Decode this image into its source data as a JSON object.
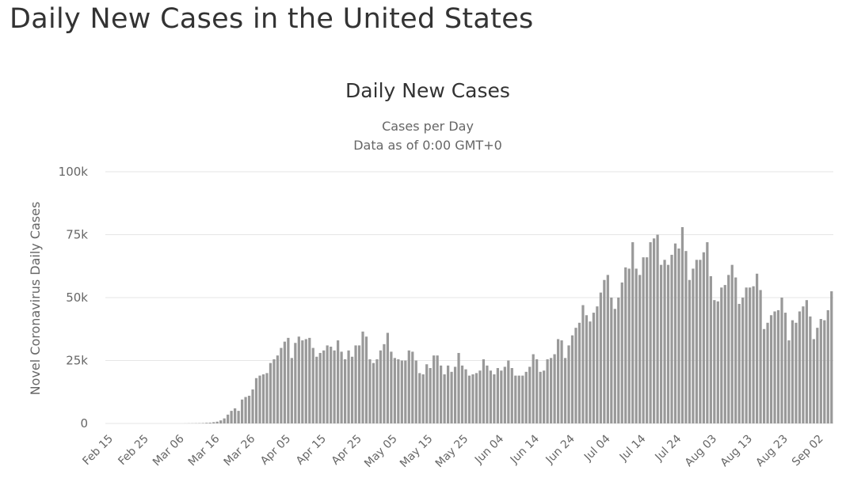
{
  "page": {
    "title": "Daily New Cases in the United States"
  },
  "chart_data": {
    "type": "bar",
    "title": "Daily New Cases",
    "subtitle_lines": [
      "Cases per Day",
      "Data as of 0:00 GMT+0"
    ],
    "ylabel": "Novel Coronavirus Daily Cases",
    "xlabel": "",
    "ylim": [
      0,
      100000
    ],
    "yticks": [
      {
        "value": 0,
        "label": "0"
      },
      {
        "value": 25000,
        "label": "25k"
      },
      {
        "value": 50000,
        "label": "50k"
      },
      {
        "value": 75000,
        "label": "75k"
      },
      {
        "value": 100000,
        "label": "100k"
      }
    ],
    "grid": true,
    "bar_color": "#999999",
    "x_tick_labels": [
      {
        "index": 0,
        "label": "Feb 15"
      },
      {
        "index": 10,
        "label": "Feb 25"
      },
      {
        "index": 20,
        "label": "Mar 06"
      },
      {
        "index": 30,
        "label": "Mar 16"
      },
      {
        "index": 40,
        "label": "Mar 26"
      },
      {
        "index": 50,
        "label": "Apr 05"
      },
      {
        "index": 60,
        "label": "Apr 15"
      },
      {
        "index": 70,
        "label": "Apr 25"
      },
      {
        "index": 80,
        "label": "May 05"
      },
      {
        "index": 90,
        "label": "May 15"
      },
      {
        "index": 100,
        "label": "May 25"
      },
      {
        "index": 110,
        "label": "Jun 04"
      },
      {
        "index": 120,
        "label": "Jun 14"
      },
      {
        "index": 130,
        "label": "Jun 24"
      },
      {
        "index": 140,
        "label": "Jul 04"
      },
      {
        "index": 150,
        "label": "Jul 14"
      },
      {
        "index": 160,
        "label": "Jul 24"
      },
      {
        "index": 170,
        "label": "Aug 03"
      },
      {
        "index": 180,
        "label": "Aug 13"
      },
      {
        "index": 190,
        "label": "Aug 23"
      },
      {
        "index": 200,
        "label": "Sep 02"
      }
    ],
    "series": [
      {
        "name": "Daily Cases",
        "start_date": "Feb 15",
        "values": [
          0,
          0,
          0,
          0,
          0,
          0,
          0,
          0,
          0,
          0,
          0,
          0,
          0,
          0,
          0,
          0,
          0,
          0,
          0,
          0,
          0,
          0,
          20,
          40,
          60,
          80,
          100,
          150,
          250,
          300,
          500,
          700,
          1200,
          2000,
          3500,
          5000,
          6000,
          5000,
          9500,
          10500,
          11000,
          13500,
          18000,
          19000,
          19500,
          20000,
          24000,
          25500,
          27000,
          30000,
          32500,
          34000,
          26000,
          32000,
          34500,
          33000,
          33500,
          34000,
          30000,
          26500,
          28000,
          29000,
          31000,
          30500,
          29000,
          33000,
          28500,
          25500,
          29000,
          26500,
          31000,
          31000,
          36500,
          34500,
          25500,
          24000,
          25500,
          29000,
          31500,
          36000,
          28500,
          26000,
          25500,
          25000,
          25000,
          29000,
          28500,
          25000,
          20000,
          19500,
          23500,
          22000,
          27000,
          27000,
          23000,
          19500,
          23000,
          20500,
          22500,
          28000,
          23000,
          21500,
          19000,
          19500,
          20000,
          21000,
          25500,
          23000,
          21000,
          19500,
          22000,
          21000,
          22500,
          25000,
          22000,
          19000,
          19000,
          19000,
          20500,
          22500,
          27500,
          25500,
          20500,
          21000,
          25500,
          26000,
          27500,
          33500,
          33000,
          26000,
          31000,
          35000,
          38000,
          40000,
          47000,
          43000,
          40500,
          44000,
          46500,
          52000,
          57000,
          59000,
          50000,
          45500,
          50000,
          56000,
          62000,
          61500,
          72000,
          61500,
          59000,
          66000,
          66000,
          72000,
          73500,
          75000,
          63000,
          65000,
          63000,
          67000,
          71500,
          69500,
          78000,
          68500,
          57000,
          61500,
          65000,
          65000,
          68000,
          72000,
          58500,
          49000,
          48500,
          54000,
          55000,
          59000,
          63000,
          58000,
          47500,
          50000,
          54000,
          54000,
          54500,
          59500,
          53000,
          37500,
          40000,
          43000,
          44500,
          45000,
          50000,
          44000,
          33000,
          41000,
          40000,
          44500,
          46500,
          49000,
          42500,
          33500,
          38000,
          41500,
          41000,
          45000,
          52500
        ]
      }
    ]
  }
}
